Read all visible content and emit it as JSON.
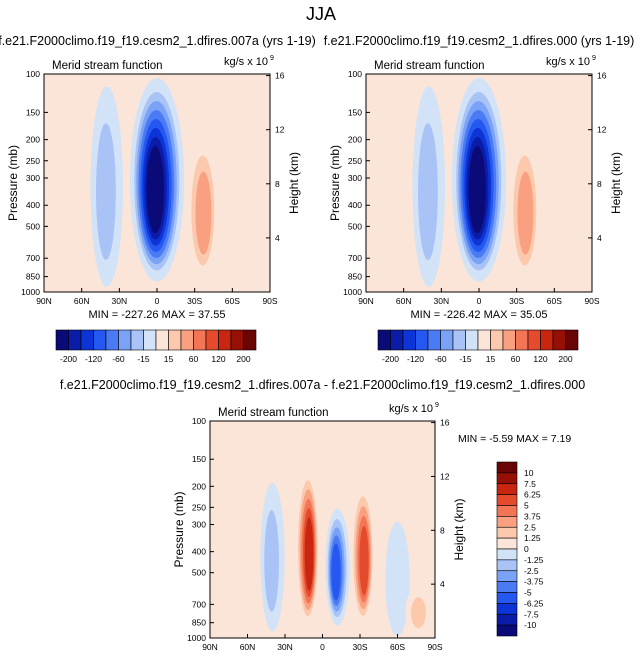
{
  "figure": {
    "title": "JJA"
  },
  "chart_data": [
    {
      "type": "heatmap",
      "title": "f.e21.F2000climo.f19_f19.cesm2_1.dfires.007a (yrs 1-19)",
      "subtitle_left": "Merid stream function",
      "units": "kg/s x 10",
      "units_exponent": "9",
      "ylabel": "Pressure (mb)",
      "ylabel_right": "Height (km)",
      "x_ticks": [
        "90N",
        "60N",
        "30N",
        "0",
        "30S",
        "60S",
        "90S"
      ],
      "y_ticks": [
        "100",
        "150",
        "200",
        "250",
        "300",
        "400",
        "500",
        "700",
        "850",
        "1000"
      ],
      "y_ticks_right": [
        "16",
        "12",
        "8",
        "4"
      ],
      "stats": "MIN = -227.26   MAX =  37.55",
      "min": -227.26,
      "max": 37.55,
      "features": [
        {
          "lat": 0,
          "p_low": 850,
          "p_high": 110,
          "value": -227.26
        },
        {
          "lat": -36,
          "p_low": 850,
          "p_high": 200,
          "value": 37.55
        },
        {
          "lat": 40,
          "p_low": 900,
          "p_high": 120,
          "value": -15
        },
        {
          "lat": -78,
          "p_low": 850,
          "p_high": 250,
          "value": 8
        }
      ]
    },
    {
      "type": "heatmap",
      "title": "f.e21.F2000climo.f19_f19.cesm2_1.dfires.000 (yrs 1-19)",
      "subtitle_left": "Merid stream function",
      "units": "kg/s x 10",
      "units_exponent": "9",
      "ylabel": "Pressure (mb)",
      "ylabel_right": "Height (km)",
      "x_ticks": [
        "90N",
        "60N",
        "30N",
        "0",
        "30S",
        "60S",
        "90S"
      ],
      "y_ticks": [
        "100",
        "150",
        "200",
        "250",
        "300",
        "400",
        "500",
        "700",
        "850",
        "1000"
      ],
      "y_ticks_right": [
        "16",
        "12",
        "8",
        "4"
      ],
      "stats": "MIN = -226.42   MAX =  35.05",
      "min": -226.42,
      "max": 35.05,
      "features": [
        {
          "lat": 0,
          "p_low": 850,
          "p_high": 110,
          "value": -226.42
        },
        {
          "lat": -36,
          "p_low": 850,
          "p_high": 200,
          "value": 35.05
        },
        {
          "lat": 40,
          "p_low": 900,
          "p_high": 120,
          "value": -15
        },
        {
          "lat": -78,
          "p_low": 850,
          "p_high": 250,
          "value": 8
        }
      ]
    },
    {
      "type": "heatmap",
      "title": "f.e21.F2000climo.f19_f19.cesm2_1.dfires.007a - f.e21.F2000climo.f19_f19.cesm2_1.dfires.000",
      "subtitle_left": "Merid stream function",
      "units": "kg/s x 10",
      "units_exponent": "9",
      "ylabel": "Pressure (mb)",
      "ylabel_right": "Height (km)",
      "x_ticks": [
        "90N",
        "60N",
        "30N",
        "0",
        "30S",
        "60S",
        "90S"
      ],
      "y_ticks": [
        "100",
        "150",
        "200",
        "250",
        "300",
        "400",
        "500",
        "700",
        "850",
        "1000"
      ],
      "y_ticks_right": [
        "16",
        "12",
        "8",
        "4"
      ],
      "stats": "MIN =  -5.59   MAX =   7.19",
      "min": -5.59,
      "max": 7.19,
      "features": [
        {
          "lat": 12,
          "p_low": 850,
          "p_high": 170,
          "value": 7.19
        },
        {
          "lat": -12,
          "p_low": 850,
          "p_high": 260,
          "value": -5.59
        },
        {
          "lat": -32,
          "p_low": 850,
          "p_high": 200,
          "value": 5.5
        },
        {
          "lat": 40,
          "p_low": 900,
          "p_high": 200,
          "value": -1.5
        },
        {
          "lat": -60,
          "p_low": 950,
          "p_high": 300,
          "value": -1.2
        },
        {
          "lat": -76,
          "p_low": 950,
          "p_high": 600,
          "value": 1.5
        }
      ]
    }
  ],
  "colorbar_top": {
    "labels": [
      "-200",
      "-120",
      "-60",
      "-15",
      "15",
      "60",
      "120",
      "200"
    ],
    "levels": [
      -200,
      -160,
      -120,
      -90,
      -60,
      -35,
      -15,
      0,
      15,
      35,
      60,
      90,
      120,
      160,
      200
    ],
    "colors": [
      "#0a0a78",
      "#0b1ca8",
      "#0d34d6",
      "#2458f0",
      "#4a7bf5",
      "#7aa2f7",
      "#a9c3f7",
      "#d3e3f7",
      "#fbe5d8",
      "#fcc9ad",
      "#f8a080",
      "#f27656",
      "#e44a2c",
      "#c8260f",
      "#971006",
      "#6a0505"
    ]
  },
  "colorbar_diff": {
    "labels": [
      "10",
      "7.5",
      "6.25",
      "5",
      "3.75",
      "2.5",
      "1.25",
      "0",
      "-1.25",
      "-2.5",
      "-3.75",
      "-5",
      "-6.25",
      "-7.5",
      "-10"
    ],
    "levels": [
      -10,
      -7.5,
      -6.25,
      -5,
      -3.75,
      -2.5,
      -1.25,
      0,
      1.25,
      2.5,
      3.75,
      5,
      6.25,
      7.5,
      10
    ],
    "colors": [
      "#0a0a78",
      "#0b1ca8",
      "#0d34d6",
      "#2458f0",
      "#4a7bf5",
      "#7aa2f7",
      "#a9c3f7",
      "#d3e3f7",
      "#fbe5d8",
      "#fcc9ad",
      "#f8a080",
      "#f27656",
      "#e44a2c",
      "#c8260f",
      "#971006",
      "#6a0505"
    ]
  }
}
